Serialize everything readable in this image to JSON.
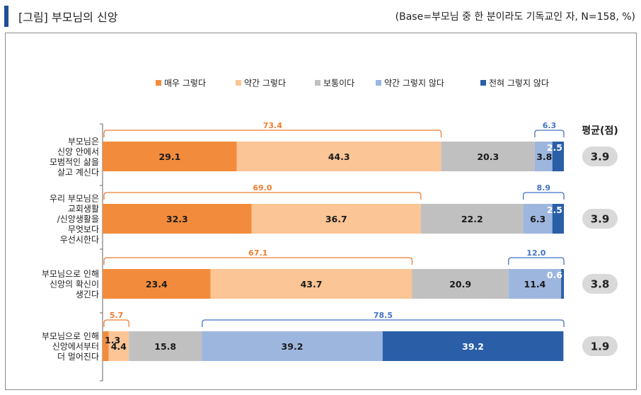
{
  "header": {
    "title": "[그림] 부모님의 신앙",
    "base_note": "(Base=부모님 중 한 분이라도 기독교인 자, N=158, %)"
  },
  "colors": {
    "accent": "#1f4e9a",
    "bracket_positive": "#ed7d31",
    "bracket_negative": "#4472c4",
    "avg_pill": "#d9d9d9"
  },
  "chart_data": {
    "type": "bar",
    "orientation": "horizontal",
    "stacked": true,
    "unit": "%",
    "legend_position": "top",
    "avg_label": "평균(점)",
    "categories": [
      [
        "부모님은",
        "신앙 안에서",
        "모범적인 삶을",
        "살고 계신다"
      ],
      [
        "우리 부모님은",
        "교회생활",
        "/신앙생활을",
        "무엇보다",
        "우선시한다"
      ],
      [
        "부모님으로 인해",
        "신앙의 확신이",
        "생긴다"
      ],
      [
        "부모님으로 인해",
        "신앙에서부터",
        "더 멀어진다"
      ]
    ],
    "series": [
      {
        "name": "매우 그렇다",
        "color": "#f28c3c",
        "label_color": "#1a1a1a",
        "values": [
          29.1,
          32.3,
          23.4,
          1.3
        ]
      },
      {
        "name": "약간 그렇다",
        "color": "#fbc595",
        "label_color": "#1a1a1a",
        "values": [
          44.3,
          36.7,
          43.7,
          4.4
        ]
      },
      {
        "name": "보통이다",
        "color": "#c0c0c0",
        "label_color": "#1a1a1a",
        "values": [
          20.3,
          22.2,
          20.9,
          15.8
        ]
      },
      {
        "name": "약간 그렇지 않다",
        "color": "#9db6de",
        "label_color": "#1a1a1a",
        "values": [
          3.8,
          6.3,
          11.4,
          39.2
        ]
      },
      {
        "name": "전혀 그렇지 않다",
        "color": "#2a5fa8",
        "label_color": "#ffffff",
        "values": [
          2.5,
          2.5,
          0.6,
          39.2
        ]
      }
    ],
    "positive_totals": [
      73.4,
      69.0,
      67.1,
      5.7
    ],
    "negative_totals": [
      6.3,
      8.9,
      12.0,
      78.5
    ],
    "averages": [
      "3.9",
      "3.9",
      "3.8",
      "1.9"
    ]
  }
}
